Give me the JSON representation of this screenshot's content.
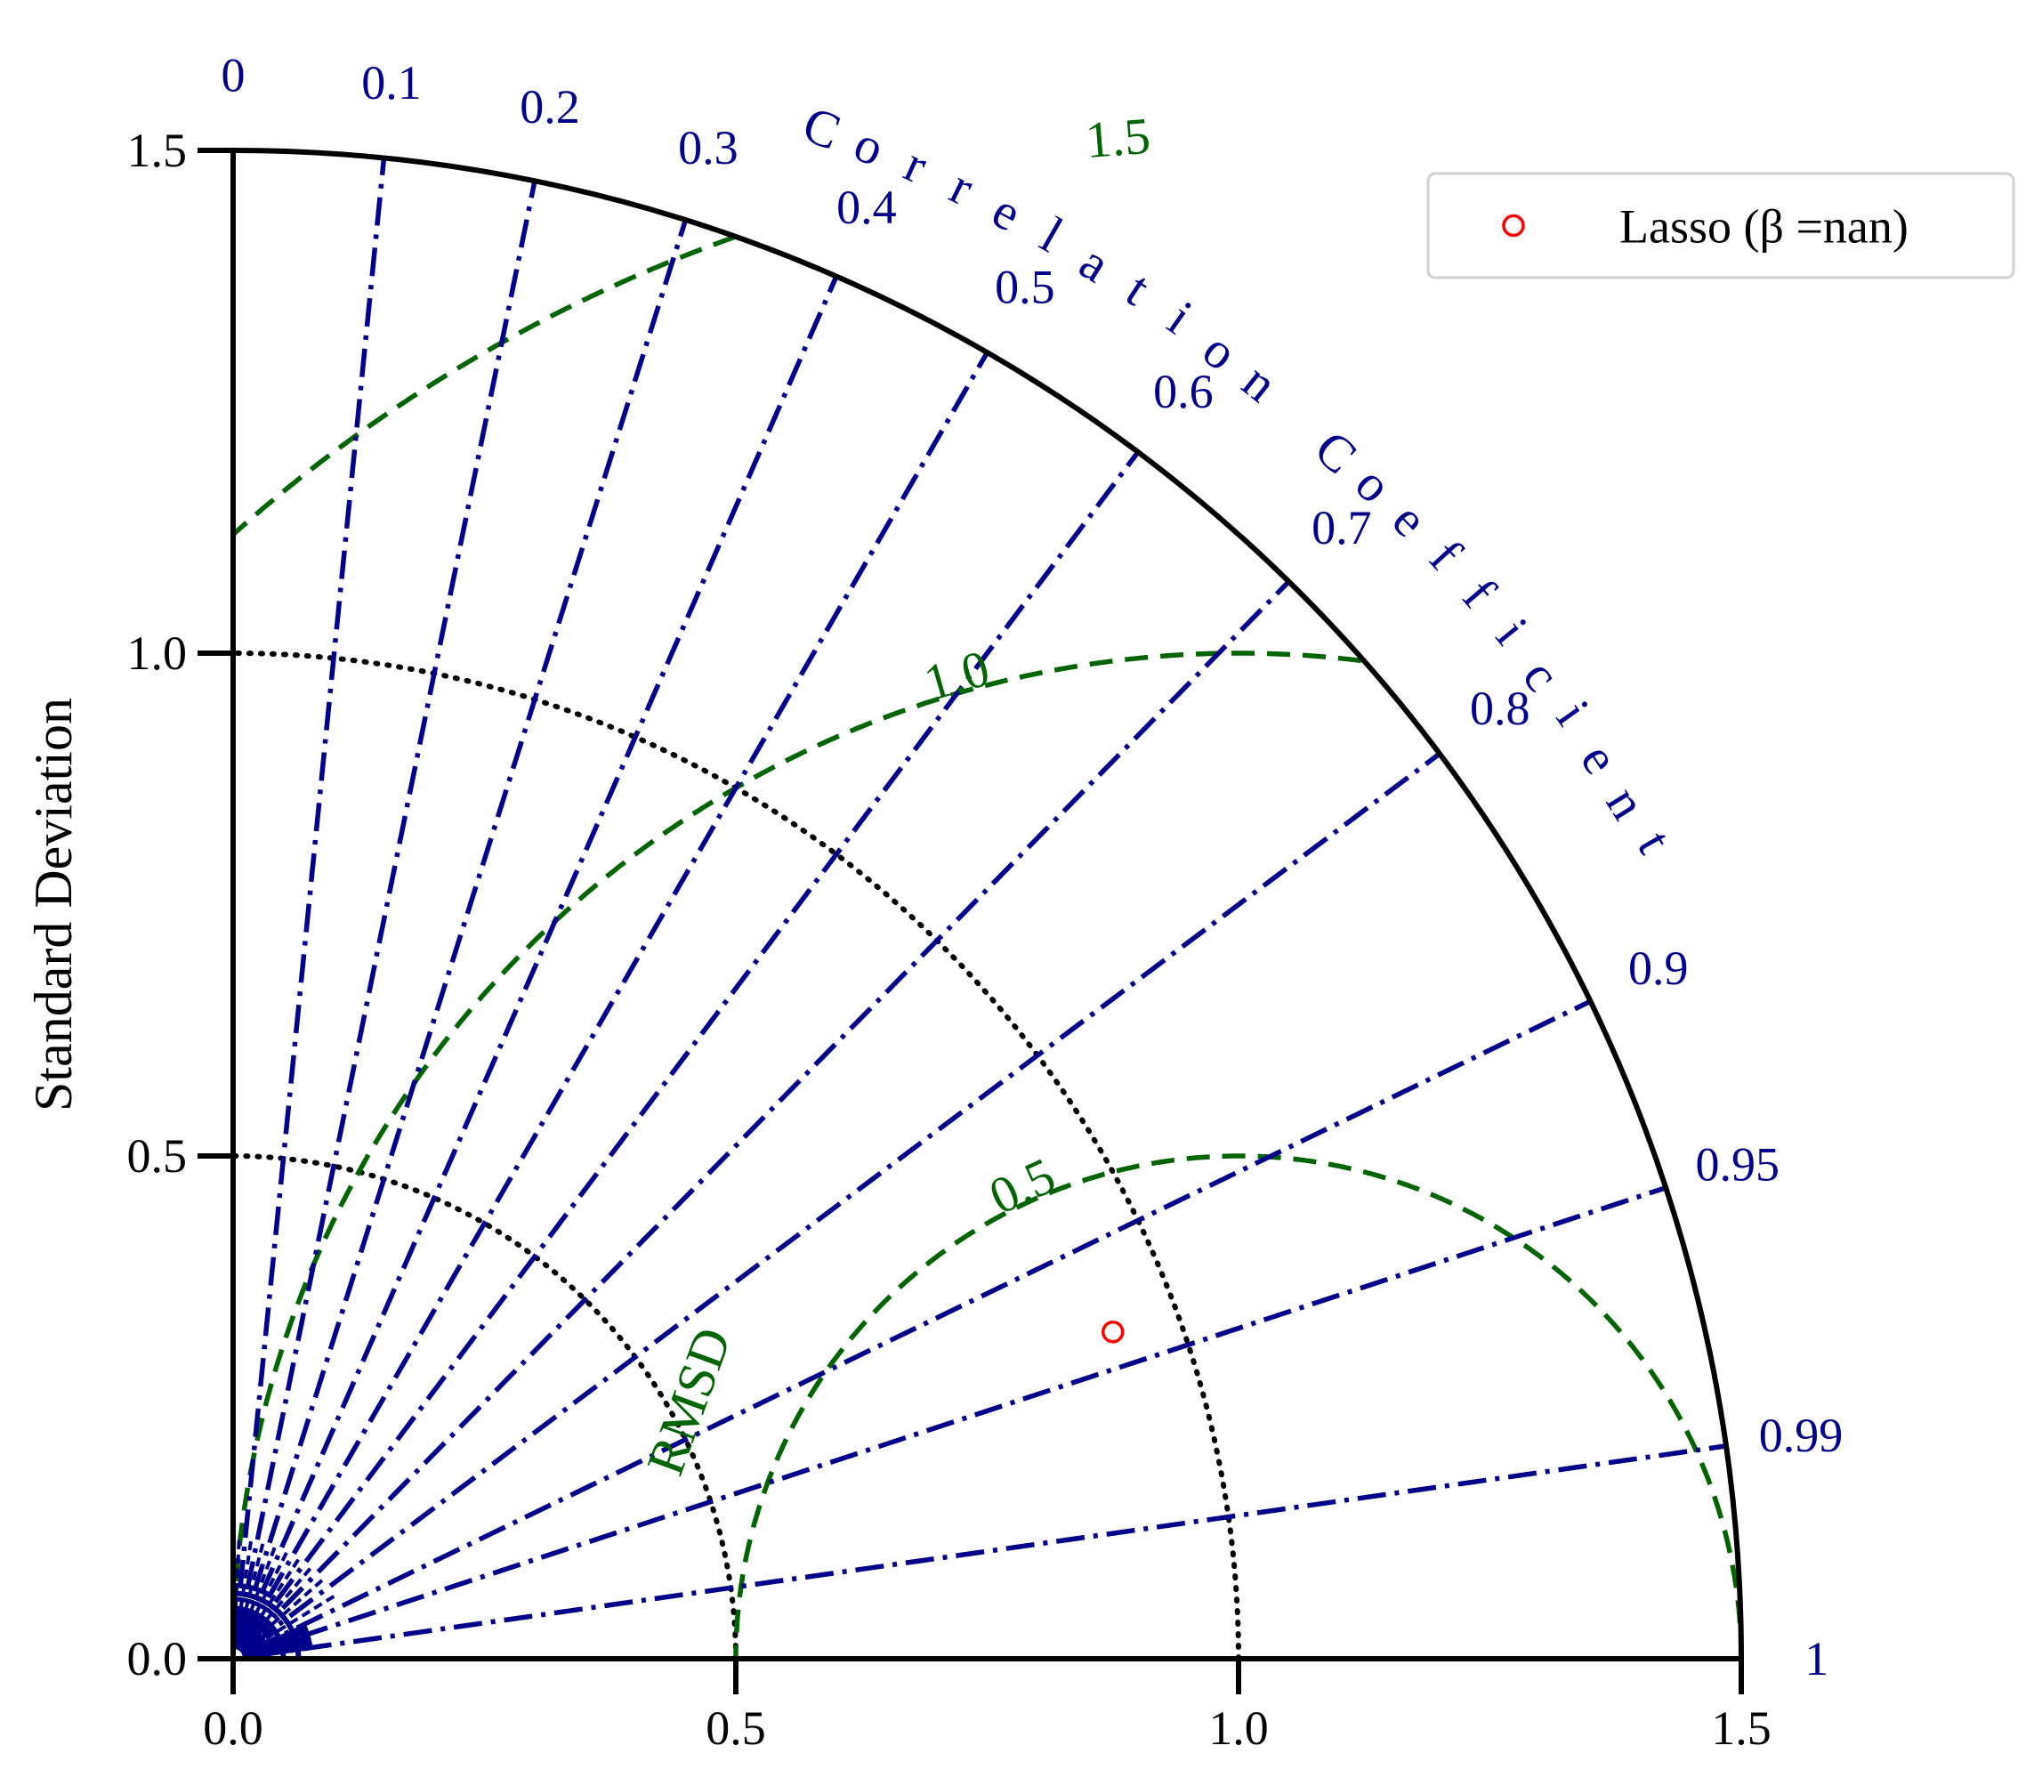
{
  "chart_data": {
    "type": "scatter",
    "subtype": "taylor-diagram",
    "title": "",
    "ylabel": "Standard Deviation",
    "xlabel": "",
    "std_max": 1.5,
    "std_ticks": [
      "0.0",
      "0.5",
      "1.0",
      "1.5"
    ],
    "correlation_label": "Correlation Coefficient",
    "correlation_ticks": [
      "0",
      "0.1",
      "0.2",
      "0.3",
      "0.4",
      "0.5",
      "0.6",
      "0.7",
      "0.8",
      "0.9",
      "0.95",
      "0.99",
      "1"
    ],
    "reference_std": 1.0,
    "rmsd_label": "RMSD",
    "rmsd_contours": [
      0.5,
      1.0,
      1.5
    ],
    "rmsd_contour_labels": [
      "0.5",
      "1.0",
      "1.5"
    ],
    "std_contours": [
      0.5,
      1.0
    ],
    "legend_placement": "top-right",
    "series": [
      {
        "name": "Lasso (β =nan)",
        "marker": "open-circle",
        "color": "#ff0000",
        "points": [
          {
            "x": 0.875,
            "y": 0.325
          }
        ]
      }
    ],
    "colors": {
      "correlation": "#00008b",
      "rmsd": "#006400",
      "std": "#000000",
      "axis": "#000000"
    }
  }
}
